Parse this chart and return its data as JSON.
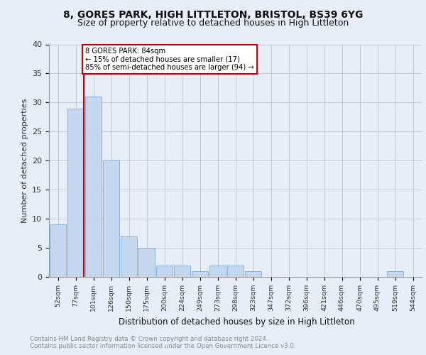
{
  "title1": "8, GORES PARK, HIGH LITTLETON, BRISTOL, BS39 6YG",
  "title2": "Size of property relative to detached houses in High Littleton",
  "xlabel": "Distribution of detached houses by size in High Littleton",
  "ylabel": "Number of detached properties",
  "categories": [
    "52sqm",
    "77sqm",
    "101sqm",
    "126sqm",
    "150sqm",
    "175sqm",
    "200sqm",
    "224sqm",
    "249sqm",
    "273sqm",
    "298sqm",
    "323sqm",
    "347sqm",
    "372sqm",
    "396sqm",
    "421sqm",
    "446sqm",
    "470sqm",
    "495sqm",
    "519sqm",
    "544sqm"
  ],
  "values": [
    9,
    29,
    31,
    20,
    7,
    5,
    2,
    2,
    1,
    2,
    2,
    1,
    0,
    0,
    0,
    0,
    0,
    0,
    0,
    1,
    0
  ],
  "bar_color": "#c5d8f0",
  "bar_edge_color": "#7aaad4",
  "vline_color": "#cc0000",
  "annotation_text": "8 GORES PARK: 84sqm\n← 15% of detached houses are smaller (17)\n85% of semi-detached houses are larger (94) →",
  "annotation_box_facecolor": "#ffffff",
  "annotation_box_edge": "#cc0000",
  "ylim": [
    0,
    40
  ],
  "yticks": [
    0,
    5,
    10,
    15,
    20,
    25,
    30,
    35,
    40
  ],
  "footer1": "Contains HM Land Registry data © Crown copyright and database right 2024.",
  "footer2": "Contains public sector information licensed under the Open Government Licence v3.0.",
  "bg_color": "#e8eef7",
  "plot_bg_color": "#e8eef7",
  "title1_fontsize": 10,
  "title2_fontsize": 9
}
